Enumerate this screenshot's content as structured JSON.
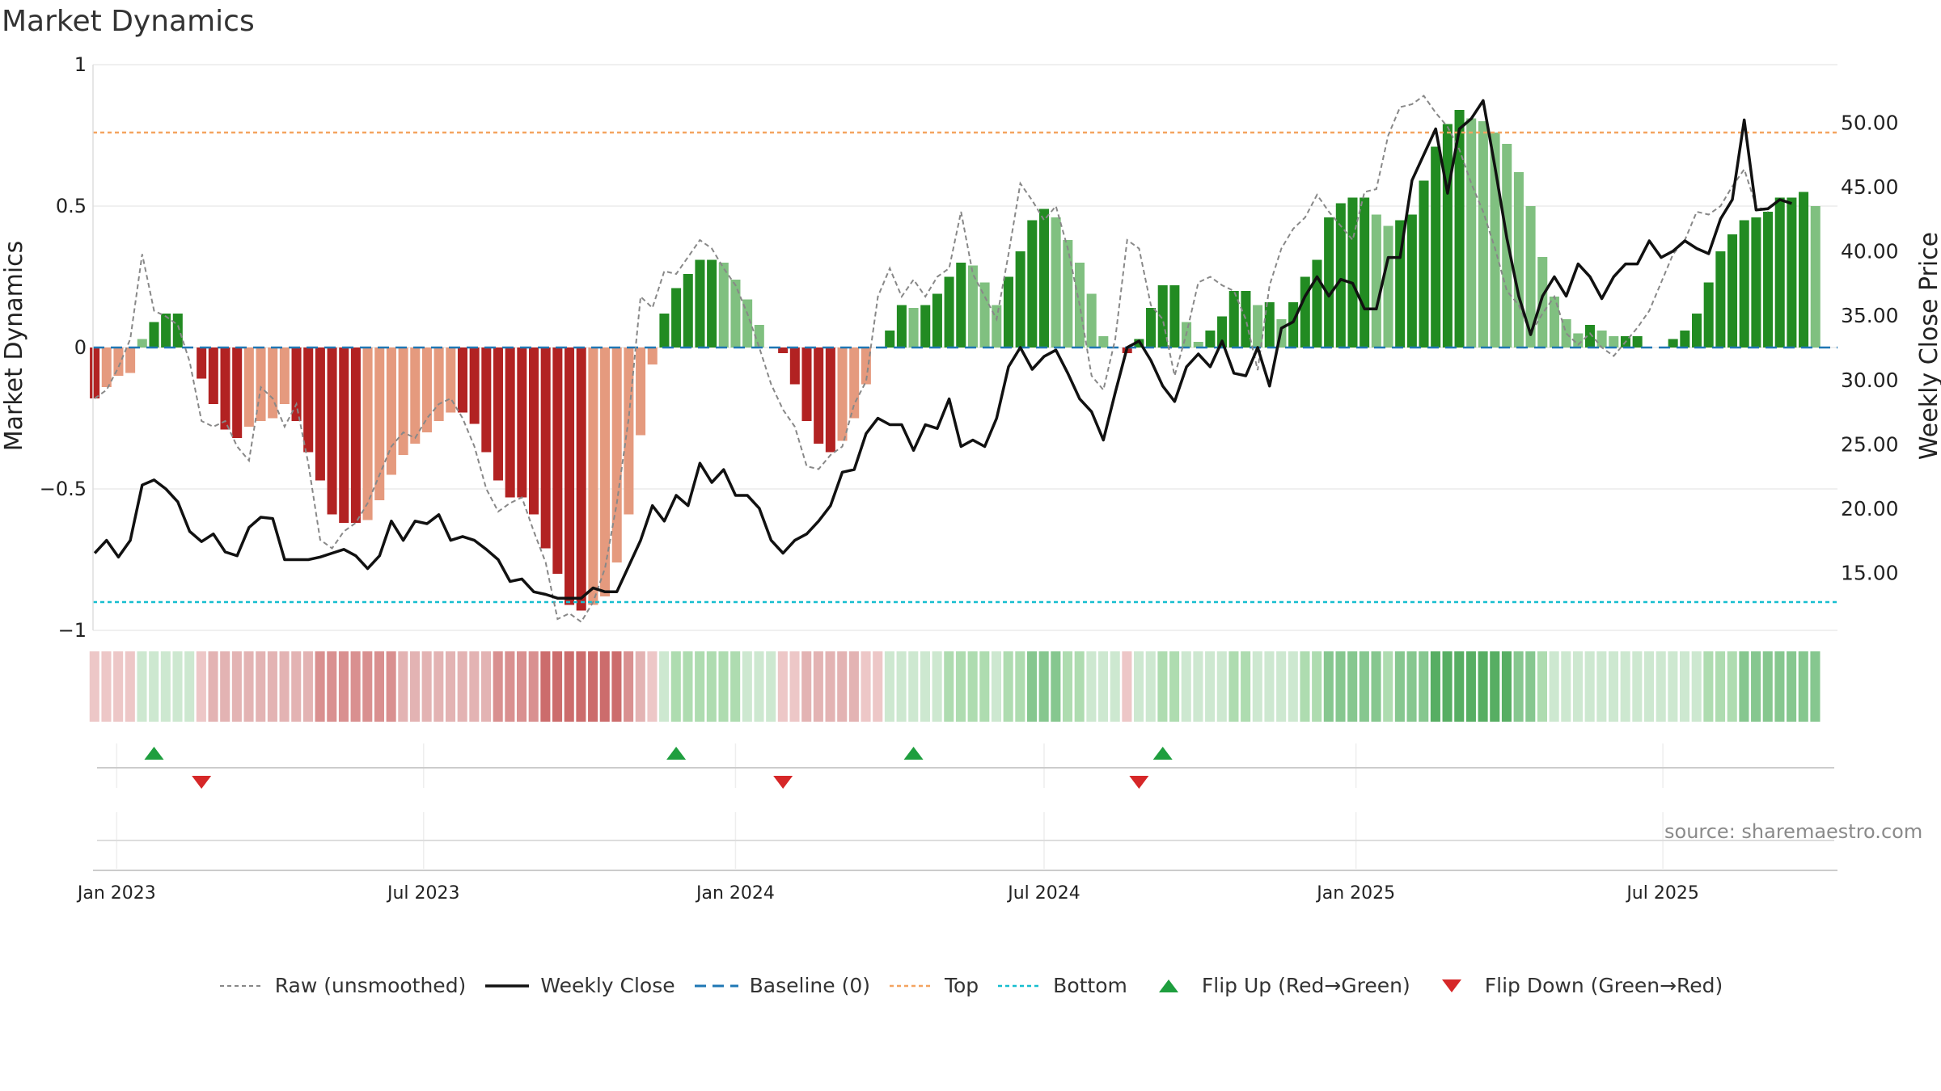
{
  "title": "Market Dynamics",
  "source": "source: sharemaestro.com",
  "colors": {
    "strong_red": "#b22222",
    "light_red": "#e59a7e",
    "strong_green": "#228b22",
    "light_green": "#80c080",
    "weekly_close": "#111111",
    "raw": "#888888",
    "baseline": "#1f77b4",
    "top": "#f4a460",
    "bottom": "#17becf",
    "flip_up": "#1e9e3e",
    "flip_down": "#d62728"
  },
  "chart_data": {
    "type": "bar",
    "x_axis": {
      "tick_labels": [
        "Jan 2023",
        "Jul 2023",
        "Jan 2024",
        "Jul 2024",
        "Jan 2025",
        "Jul 2025"
      ],
      "tick_dates": [
        "2023-01-01",
        "2023-07-01",
        "2024-01-01",
        "2024-07-01",
        "2025-01-01",
        "2025-07-01"
      ],
      "range": [
        "2022-12-18",
        "2025-10-12"
      ]
    },
    "y_left": {
      "label": "Market Dynamics",
      "range": [
        -1,
        1
      ],
      "ticks": [
        1,
        0.5,
        0,
        -0.5,
        -1
      ],
      "tick_labels": [
        "1",
        "0.5",
        "0",
        "−0.5",
        "−1"
      ]
    },
    "y_right": {
      "label": "Weekly Close Price",
      "range": [
        10.5,
        54.5
      ],
      "ticks": [
        50,
        45,
        40,
        35,
        30,
        25,
        20,
        15
      ],
      "tick_labels": [
        "50.00",
        "45.00",
        "40.00",
        "35.00",
        "30.00",
        "25.00",
        "20.00",
        "15.00"
      ]
    },
    "reference_lines": {
      "baseline": 0,
      "top": 0.76,
      "bottom": -0.9
    },
    "start_date": "2022-12-19",
    "week_step_days": 7,
    "momentum": [
      -0.18,
      -0.14,
      -0.1,
      -0.09,
      0.03,
      0.09,
      0.12,
      0.12,
      0,
      -0.11,
      -0.2,
      -0.29,
      -0.32,
      -0.28,
      -0.26,
      -0.25,
      -0.2,
      -0.26,
      -0.37,
      -0.47,
      -0.59,
      -0.62,
      -0.62,
      -0.61,
      -0.54,
      -0.45,
      -0.38,
      -0.34,
      -0.3,
      -0.26,
      -0.23,
      -0.23,
      -0.27,
      -0.37,
      -0.47,
      -0.53,
      -0.53,
      -0.59,
      -0.71,
      -0.8,
      -0.91,
      -0.93,
      -0.91,
      -0.88,
      -0.76,
      -0.59,
      -0.31,
      -0.06,
      0.12,
      0.21,
      0.26,
      0.31,
      0.31,
      0.3,
      0.24,
      0.17,
      0.08,
      0,
      -0.02,
      -0.13,
      -0.26,
      -0.34,
      -0.37,
      -0.33,
      -0.25,
      -0.13,
      0,
      0.06,
      0.15,
      0.14,
      0.15,
      0.19,
      0.25,
      0.3,
      0.29,
      0.23,
      0.15,
      0.25,
      0.34,
      0.45,
      0.49,
      0.46,
      0.38,
      0.3,
      0.19,
      0.04,
      0,
      -0.02,
      0.03,
      0.14,
      0.22,
      0.22,
      0.09,
      0.02,
      0.06,
      0.11,
      0.2,
      0.2,
      0.15,
      0.16,
      0.1,
      0.16,
      0.25,
      0.31,
      0.46,
      0.51,
      0.53,
      0.53,
      0.47,
      0.43,
      0.45,
      0.47,
      0.59,
      0.71,
      0.79,
      0.84,
      0.81,
      0.8,
      0.76,
      0.72,
      0.62,
      0.5,
      0.32,
      0.18,
      0.1,
      0.05,
      0.08,
      0.06,
      0.04,
      0.04,
      0.04,
      0,
      0,
      0.03,
      0.06,
      0.12,
      0.23,
      0.34,
      0.4,
      0.45,
      0.46,
      0.48,
      0.53,
      0.53,
      0.55,
      0.5
    ],
    "raw_unsmoothed": [
      -0.18,
      -0.15,
      -0.07,
      0.03,
      0.33,
      0.13,
      0.11,
      0.08,
      -0.05,
      -0.26,
      -0.28,
      -0.26,
      -0.35,
      -0.4,
      -0.14,
      -0.18,
      -0.28,
      -0.2,
      -0.41,
      -0.68,
      -0.71,
      -0.65,
      -0.62,
      -0.55,
      -0.45,
      -0.35,
      -0.3,
      -0.32,
      -0.25,
      -0.2,
      -0.18,
      -0.25,
      -0.35,
      -0.5,
      -0.58,
      -0.55,
      -0.53,
      -0.65,
      -0.76,
      -0.96,
      -0.94,
      -0.97,
      -0.9,
      -0.78,
      -0.55,
      -0.25,
      0.18,
      0.14,
      0.27,
      0.26,
      0.32,
      0.38,
      0.35,
      0.28,
      0.22,
      0.12,
      0.0,
      -0.13,
      -0.22,
      -0.28,
      -0.42,
      -0.43,
      -0.38,
      -0.35,
      -0.2,
      -0.12,
      0.18,
      0.28,
      0.18,
      0.24,
      0.18,
      0.25,
      0.28,
      0.48,
      0.26,
      0.18,
      0.1,
      0.33,
      0.58,
      0.52,
      0.45,
      0.5,
      0.35,
      0.15,
      -0.1,
      -0.15,
      0.03,
      0.38,
      0.35,
      0.15,
      0.1,
      -0.1,
      0.05,
      0.23,
      0.25,
      0.22,
      0.2,
      0.1,
      -0.08,
      0.22,
      0.35,
      0.42,
      0.46,
      0.54,
      0.48,
      0.43,
      0.38,
      0.55,
      0.56,
      0.75,
      0.85,
      0.86,
      0.89,
      0.83,
      0.78,
      0.7,
      0.58,
      0.48,
      0.35,
      0.2,
      0.15,
      0.05,
      0.12,
      0.18,
      0.05,
      0.01,
      0.05,
      0.0,
      -0.03,
      0.02,
      0.07,
      0.13,
      0.23,
      0.33,
      0.38,
      0.48,
      0.47,
      0.5,
      0.57,
      0.63,
      0.5,
      0.48
    ],
    "weekly_close": [
      16.5,
      17.5,
      16.2,
      17.5,
      21.8,
      22.2,
      21.5,
      20.5,
      18.2,
      17.4,
      18.0,
      16.6,
      16.3,
      18.5,
      19.3,
      19.2,
      16.0,
      16.0,
      16.0,
      16.2,
      16.5,
      16.8,
      16.3,
      15.3,
      16.3,
      19.0,
      17.5,
      19.0,
      18.8,
      19.5,
      17.5,
      17.8,
      17.5,
      16.8,
      16.0,
      14.3,
      14.5,
      13.5,
      13.3,
      13.0,
      13.0,
      13.0,
      13.8,
      13.5,
      13.5,
      15.5,
      17.5,
      20.2,
      19.0,
      21.0,
      20.2,
      23.5,
      22.0,
      23.0,
      21.0,
      21.0,
      20.0,
      17.5,
      16.5,
      17.5,
      18.0,
      19.0,
      20.2,
      22.8,
      23.0,
      25.8,
      27.0,
      26.5,
      26.5,
      24.5,
      26.5,
      26.2,
      28.5,
      24.8,
      25.3,
      24.8,
      27.0,
      31.0,
      32.5,
      30.8,
      31.8,
      32.3,
      30.5,
      28.5,
      27.5,
      25.3,
      29.0,
      32.5,
      33.0,
      31.5,
      29.5,
      28.3,
      31.0,
      32.0,
      31.0,
      33.0,
      30.5,
      30.3,
      32.5,
      29.5,
      34.0,
      34.5,
      36.5,
      38.0,
      36.5,
      37.8,
      37.5,
      35.5,
      35.5,
      39.5,
      39.5,
      45.5,
      47.5,
      49.5,
      44.5,
      49.5,
      50.3,
      51.7,
      46.5,
      41.0,
      36.5,
      33.5,
      36.5,
      38.0,
      36.5,
      39.0,
      38.0,
      36.3,
      38.0,
      39.0,
      39.0,
      40.8,
      39.5,
      40.0,
      40.8,
      40.2,
      39.8,
      42.5,
      44.0,
      50.2,
      43.2,
      43.3,
      44.0,
      43.7
    ]
  },
  "ribbon": {
    "red_tones": [
      "#edc7c7",
      "#e3b3b3",
      "#d99090",
      "#cc6c6c"
    ],
    "green_tones": [
      "#cde8d0",
      "#aedcb0",
      "#86c78f",
      "#57ae63"
    ]
  },
  "flip_markers": {
    "up_dates": [
      "2023-01-23",
      "2023-11-27",
      "2024-04-15",
      "2024-09-09"
    ],
    "down_dates": [
      "2023-02-20",
      "2024-01-29",
      "2024-08-26"
    ]
  },
  "legend": [
    {
      "key": "raw",
      "label": "Raw (unsmoothed)"
    },
    {
      "key": "weekly_close",
      "label": "Weekly Close"
    },
    {
      "key": "baseline",
      "label": "Baseline (0)"
    },
    {
      "key": "top",
      "label": "Top"
    },
    {
      "key": "bottom",
      "label": "Bottom"
    },
    {
      "key": "flip_up",
      "label": "Flip Up (Red→Green)"
    },
    {
      "key": "flip_down",
      "label": "Flip Down (Green→Red)"
    }
  ]
}
